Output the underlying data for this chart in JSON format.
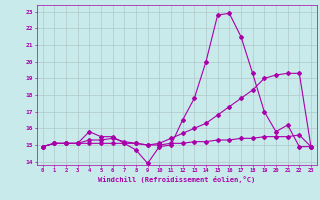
{
  "xlabel": "Windchill (Refroidissement éolien,°C)",
  "bg_color": "#c8eaea",
  "line_color": "#aa00aa",
  "grid_color": "#b0c8c8",
  "ylim": [
    13.8,
    23.4
  ],
  "xlim": [
    -0.5,
    23.5
  ],
  "yticks": [
    14,
    15,
    16,
    17,
    18,
    19,
    20,
    21,
    22,
    23
  ],
  "xticks": [
    0,
    1,
    2,
    3,
    4,
    5,
    6,
    7,
    8,
    9,
    10,
    11,
    12,
    13,
    14,
    15,
    16,
    17,
    18,
    19,
    20,
    21,
    22,
    23
  ],
  "line1_x": [
    0,
    1,
    2,
    3,
    4,
    5,
    6,
    7,
    8,
    9,
    10,
    11,
    12,
    13,
    14,
    15,
    16,
    17,
    18,
    19,
    20,
    21,
    22,
    23
  ],
  "line1_y": [
    14.9,
    15.1,
    15.1,
    15.1,
    15.8,
    15.5,
    15.5,
    15.1,
    14.7,
    13.9,
    14.9,
    15.0,
    16.5,
    17.8,
    20.0,
    22.8,
    22.9,
    21.5,
    19.3,
    17.0,
    15.8,
    16.2,
    14.9,
    14.9
  ],
  "line2_x": [
    0,
    1,
    2,
    3,
    4,
    5,
    6,
    7,
    8,
    9,
    10,
    11,
    12,
    13,
    14,
    15,
    16,
    17,
    18,
    19,
    20,
    21,
    22,
    23
  ],
  "line2_y": [
    14.9,
    15.1,
    15.1,
    15.1,
    15.3,
    15.3,
    15.4,
    15.2,
    15.1,
    15.0,
    15.1,
    15.4,
    15.7,
    16.0,
    16.3,
    16.8,
    17.3,
    17.8,
    18.3,
    19.0,
    19.2,
    19.3,
    19.3,
    14.9
  ],
  "line3_x": [
    0,
    1,
    2,
    3,
    4,
    5,
    6,
    7,
    8,
    9,
    10,
    11,
    12,
    13,
    14,
    15,
    16,
    17,
    18,
    19,
    20,
    21,
    22,
    23
  ],
  "line3_y": [
    14.9,
    15.1,
    15.1,
    15.1,
    15.1,
    15.1,
    15.1,
    15.1,
    15.1,
    15.0,
    15.0,
    15.1,
    15.1,
    15.2,
    15.2,
    15.3,
    15.3,
    15.4,
    15.4,
    15.5,
    15.5,
    15.5,
    15.6,
    14.9
  ],
  "marker": "D",
  "markersize": 2.0,
  "linewidth": 0.8
}
